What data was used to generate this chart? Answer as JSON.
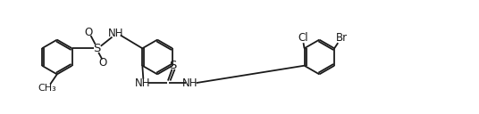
{
  "bg_color": "#ffffff",
  "line_color": "#1a1a1a",
  "line_width": 1.3,
  "font_size": 8.5,
  "figsize": [
    5.36,
    1.28
  ],
  "dpi": 100,
  "xlim": [
    0,
    10.5
  ],
  "ylim": [
    0,
    2.0
  ]
}
